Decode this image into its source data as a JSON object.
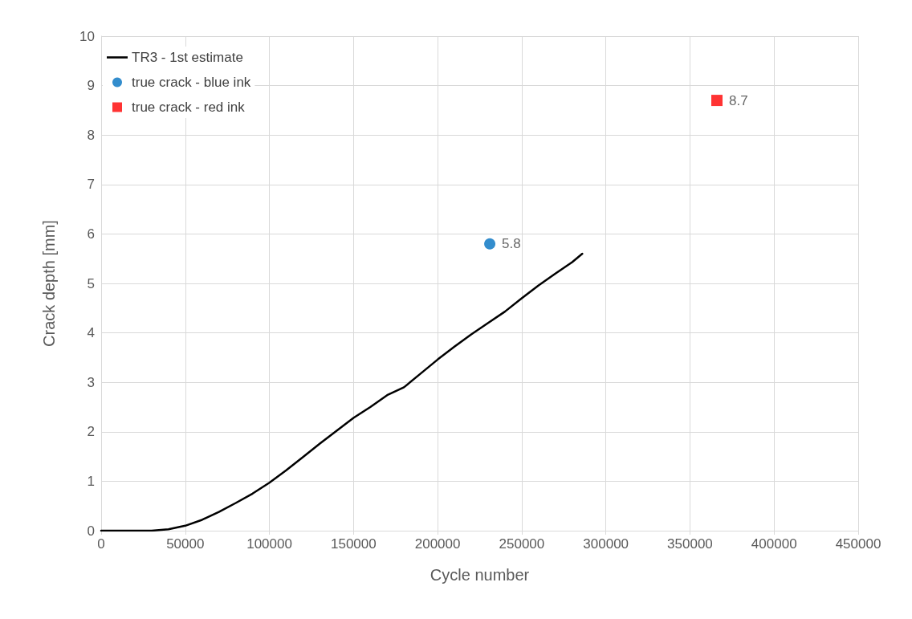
{
  "chart_data": {
    "type": "line",
    "xlabel": "Cycle number",
    "ylabel": "Crack depth [mm]",
    "xlim": [
      0,
      450000
    ],
    "xticks": [
      0,
      50000,
      100000,
      150000,
      200000,
      250000,
      300000,
      350000,
      400000,
      450000
    ],
    "ylim": [
      0,
      10
    ],
    "yticks": [
      0,
      1,
      2,
      3,
      4,
      5,
      6,
      7,
      8,
      9,
      10
    ],
    "grid": true,
    "legend": "top left",
    "series": [
      {
        "name": "TR3 - 1st estimate",
        "color": "#000000",
        "marker": "none",
        "line_style": "solid",
        "x": [
          0,
          30000,
          40000,
          50000,
          60000,
          70000,
          80000,
          90000,
          100000,
          110000,
          120000,
          130000,
          140000,
          150000,
          160000,
          170000,
          180000,
          190000,
          200000,
          210000,
          220000,
          230000,
          240000,
          250000,
          260000,
          270000,
          280000,
          286000
        ],
        "values": [
          0,
          0,
          0.03,
          0.1,
          0.22,
          0.38,
          0.56,
          0.75,
          0.97,
          1.22,
          1.49,
          1.76,
          2.02,
          2.28,
          2.5,
          2.74,
          2.9,
          3.18,
          3.46,
          3.72,
          3.97,
          4.2,
          4.43,
          4.7,
          4.96,
          5.2,
          5.43,
          5.6
        ]
      },
      {
        "name": "true crack - blue ink",
        "type": "scatter",
        "color": "#0070c0",
        "marker": "circle",
        "x": [
          231000
        ],
        "values": [
          5.8
        ],
        "value_labels": [
          "5.8"
        ]
      },
      {
        "name": "true crack - red ink",
        "type": "scatter",
        "color": "#ff0000",
        "marker": "square",
        "x": [
          366000
        ],
        "values": [
          8.7
        ],
        "value_labels": [
          "8.7"
        ]
      }
    ]
  }
}
